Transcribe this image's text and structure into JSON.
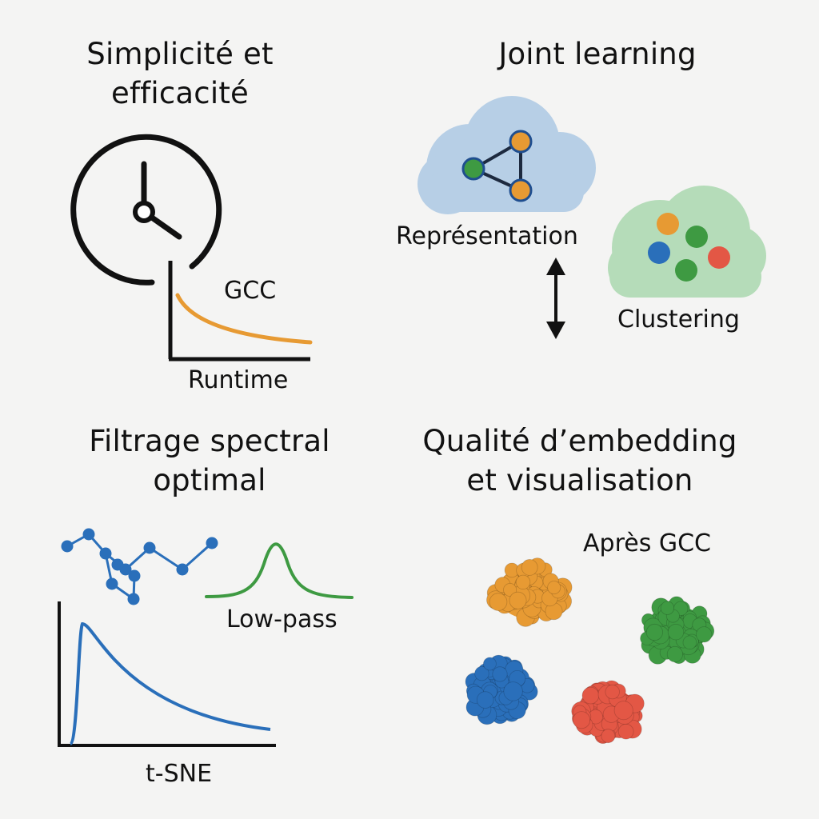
{
  "panels": {
    "simplicity": {
      "title_line1": "Simplicité et",
      "title_line2": "efficacité",
      "curve_label": "GCC",
      "axis_label": "Runtime"
    },
    "joint": {
      "title": "Joint learning",
      "representation_label": "Représentation",
      "clustering_label": "Clustering"
    },
    "filtering": {
      "title_line1": "Filtrage spectral",
      "title_line2": "optimal",
      "filter_label": "Low-pass",
      "axis_label": "t-SNE"
    },
    "quality": {
      "title_line1": "Qualité d’embedding",
      "title_line2": "et visualisation",
      "after_label": "Après GCC"
    }
  },
  "colors": {
    "orange": "#e79a33",
    "green": "#3e9a42",
    "blue": "#2a6fba",
    "red": "#e35745",
    "cloud_blue": "#b7cfe6",
    "cloud_green": "#b5dcb9"
  },
  "icons": [
    "clock-icon",
    "cloud-icon",
    "graph-icon",
    "double-arrow-icon",
    "clock-icon"
  ]
}
